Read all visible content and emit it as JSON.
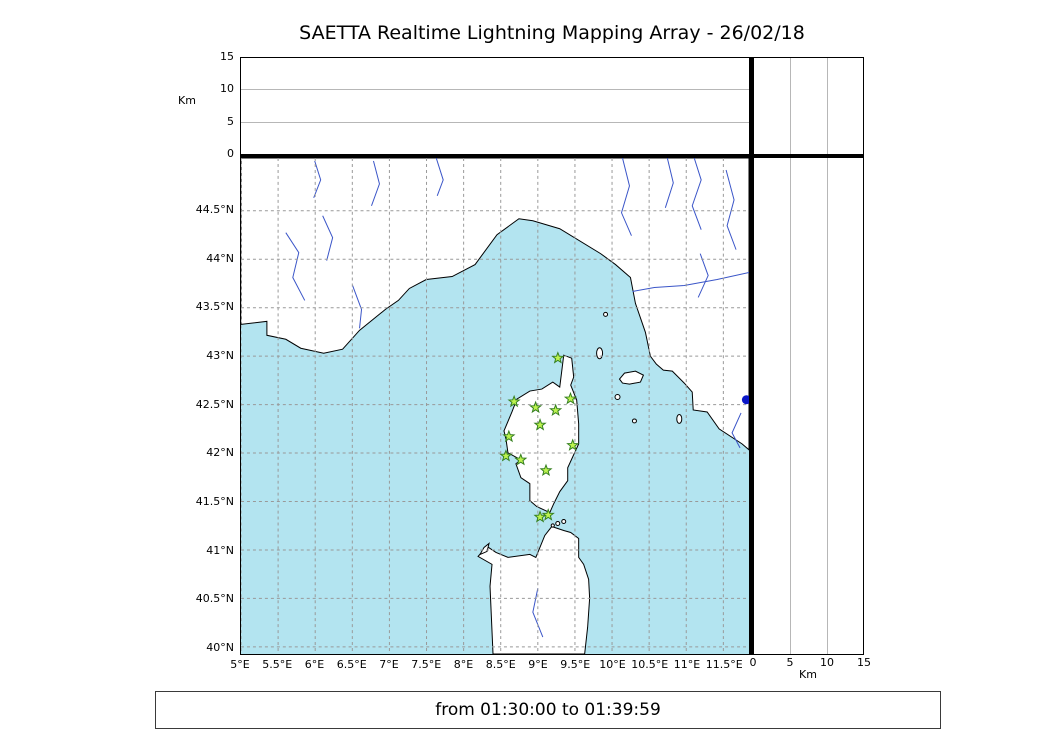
{
  "title": "SAETTA Realtime Lightning Mapping Array - 26/02/18",
  "status_text": "from 01:30:00 to 01:39:59",
  "colors": {
    "sea": "#b3e4f0",
    "land": "#ffffff",
    "coastline": "#000000",
    "river": "#3a55c8",
    "grid": "#999999",
    "station_fill": "#bdf34f",
    "station_stroke": "#357f1f",
    "data_dot": "#0a16c8"
  },
  "map_axes": {
    "lon_ticks": [
      {
        "value": 5,
        "label": "5°E"
      },
      {
        "value": 5.5,
        "label": "5.5°E"
      },
      {
        "value": 6,
        "label": "6°E"
      },
      {
        "value": 6.5,
        "label": "6.5°E"
      },
      {
        "value": 7,
        "label": "7°E"
      },
      {
        "value": 7.5,
        "label": "7.5°E"
      },
      {
        "value": 8,
        "label": "8°E"
      },
      {
        "value": 8.5,
        "label": "8.5°E"
      },
      {
        "value": 9,
        "label": "9°E"
      },
      {
        "value": 9.5,
        "label": "9.5°E"
      },
      {
        "value": 10,
        "label": "10°E"
      },
      {
        "value": 10.5,
        "label": "10.5°E"
      },
      {
        "value": 11,
        "label": "11°E"
      },
      {
        "value": 11.5,
        "label": "11.5°E"
      }
    ],
    "lat_ticks": [
      {
        "value": 44.5,
        "label": "44.5°N"
      },
      {
        "value": 44,
        "label": "44°N"
      },
      {
        "value": 43.5,
        "label": "43.5°N"
      },
      {
        "value": 43,
        "label": "43°N"
      },
      {
        "value": 42.5,
        "label": "42.5°N"
      },
      {
        "value": 42,
        "label": "42°N"
      },
      {
        "value": 41.5,
        "label": "41.5°N"
      },
      {
        "value": 41,
        "label": "41°N"
      },
      {
        "value": 40.5,
        "label": "40.5°N"
      },
      {
        "value": 40,
        "label": "40°N"
      }
    ]
  },
  "alt_axes": {
    "unit_label": "Km",
    "max_km": 15,
    "ticks": [
      {
        "value": 0,
        "label": "0"
      },
      {
        "value": 5,
        "label": "5"
      },
      {
        "value": 10,
        "label": "10"
      },
      {
        "value": 15,
        "label": "15"
      }
    ],
    "grid_values": [
      5,
      10
    ]
  },
  "stations": [
    {
      "lon": 9.27,
      "lat": 42.98
    },
    {
      "lon": 8.68,
      "lat": 42.53
    },
    {
      "lon": 8.97,
      "lat": 42.47
    },
    {
      "lon": 9.24,
      "lat": 42.44
    },
    {
      "lon": 9.44,
      "lat": 42.56
    },
    {
      "lon": 9.03,
      "lat": 42.29
    },
    {
      "lon": 8.61,
      "lat": 42.17
    },
    {
      "lon": 9.47,
      "lat": 42.08
    },
    {
      "lon": 8.57,
      "lat": 41.97
    },
    {
      "lon": 8.77,
      "lat": 41.93
    },
    {
      "lon": 9.11,
      "lat": 41.82
    },
    {
      "lon": 9.03,
      "lat": 41.34
    },
    {
      "lon": 9.14,
      "lat": 41.36
    }
  ],
  "markers": [
    {
      "lon": 11.81,
      "lat": 42.55,
      "type": "data-dot"
    }
  ]
}
